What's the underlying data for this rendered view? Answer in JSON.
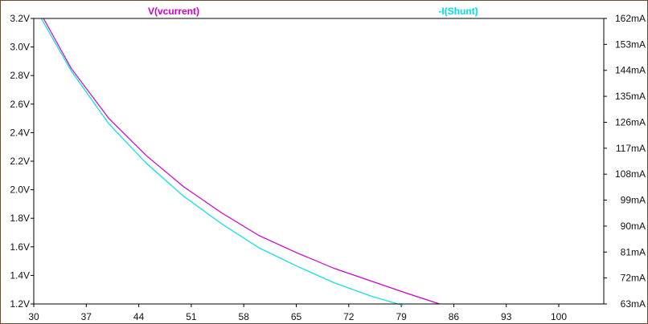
{
  "colors": {
    "background": "#ffffff",
    "frame": "#6b4a2e",
    "plot_border": "#000000",
    "series_voltage": "#cc00cc",
    "series_current": "#00e0e0"
  },
  "chart_data": {
    "type": "line",
    "title": "",
    "grid": false,
    "legend": [
      {
        "label": "V(vcurrent)",
        "color": "#cc00cc",
        "placement": "top-center-left"
      },
      {
        "label": "-I(Shunt)",
        "color": "#00e0e0",
        "placement": "top-right"
      }
    ],
    "x_axis": {
      "range": [
        30,
        106
      ],
      "ticks": [
        "30",
        "37",
        "44",
        "51",
        "58",
        "65",
        "72",
        "79",
        "86",
        "93",
        "100"
      ],
      "tick_values": [
        30,
        37,
        44,
        51,
        58,
        65,
        72,
        79,
        86,
        93,
        100
      ]
    },
    "y_left": {
      "range": [
        1.2,
        3.2
      ],
      "ticks": [
        "1.2V",
        "1.4V",
        "1.6V",
        "1.8V",
        "2.0V",
        "2.2V",
        "2.4V",
        "2.6V",
        "2.8V",
        "3.0V",
        "3.2V"
      ],
      "tick_values": [
        1.2,
        1.4,
        1.6,
        1.8,
        2.0,
        2.2,
        2.4,
        2.6,
        2.8,
        3.0,
        3.2
      ],
      "unit": "V"
    },
    "y_right": {
      "range": [
        63,
        162
      ],
      "ticks": [
        "63mA",
        "72mA",
        "81mA",
        "90mA",
        "99mA",
        "108mA",
        "117mA",
        "126mA",
        "135mA",
        "144mA",
        "153mA",
        "162mA"
      ],
      "tick_values": [
        63,
        72,
        81,
        90,
        99,
        108,
        117,
        126,
        135,
        144,
        153,
        162
      ],
      "unit": "mA"
    },
    "series": [
      {
        "name": "V(vcurrent)",
        "axis": "left",
        "color": "#cc00cc",
        "x": [
          31.3,
          35,
          40,
          45,
          50,
          55,
          60,
          65,
          70,
          75,
          80,
          84.1
        ],
        "y": [
          3.2,
          2.85,
          2.5,
          2.24,
          2.02,
          1.84,
          1.68,
          1.56,
          1.45,
          1.36,
          1.27,
          1.2
        ]
      },
      {
        "name": "-I(Shunt)",
        "axis": "right",
        "color": "#00e0e0",
        "x": [
          31,
          35,
          40,
          45,
          50,
          55,
          60,
          65,
          70,
          75,
          79.2
        ],
        "y": [
          162,
          143.8,
          125.5,
          111.8,
          100.3,
          90.9,
          82.5,
          76.2,
          70.4,
          65.7,
          62.5
        ]
      }
    ]
  }
}
